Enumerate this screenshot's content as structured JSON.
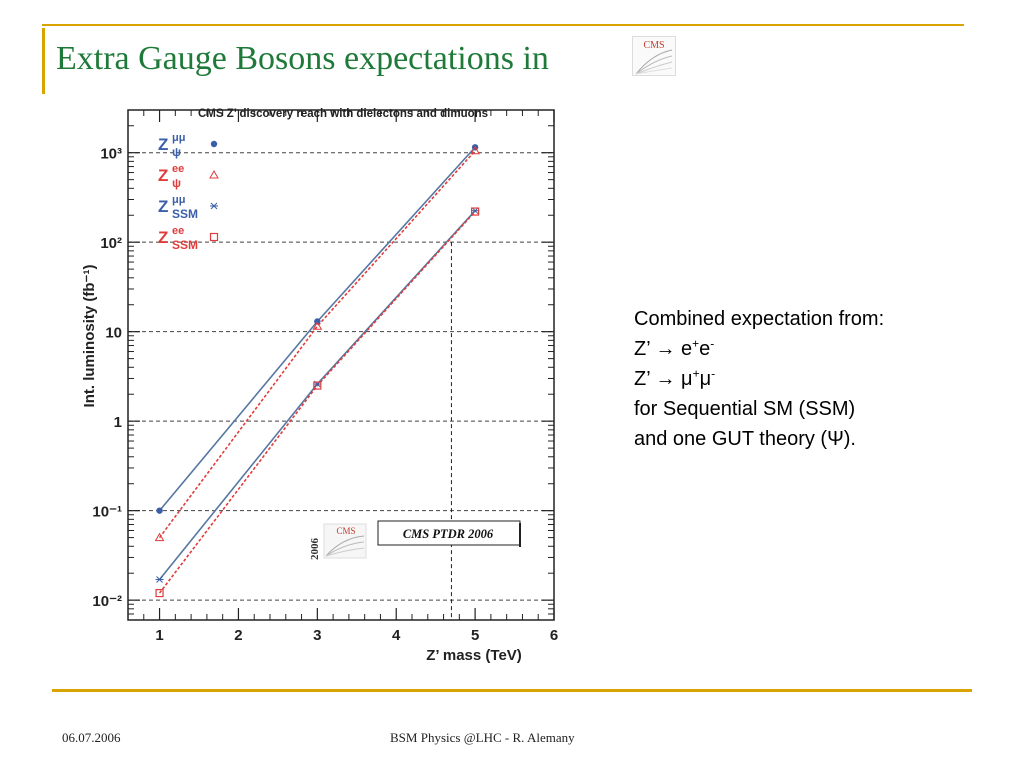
{
  "slide": {
    "title": "Extra Gauge Bosons expectations in",
    "footer_date": "06.07.2006",
    "footer_center": "BSM Physics @LHC -  R. Alemany"
  },
  "logo": {
    "text": "CMS",
    "year": "2006"
  },
  "side_text": {
    "line1": "Combined expectation from:",
    "line2_pre": "Z’ → e",
    "line2_sup1": "+",
    "line2_mid": "e",
    "line2_sup2": "-",
    "line3_pre": "Z’ → μ",
    "line3_sup1": "+",
    "line3_mid": "μ",
    "line3_sup2": "-",
    "line4": "for Sequential SM (SSM)",
    "line5": "and one GUT theory (Ψ)."
  },
  "chart_data": {
    "type": "line",
    "title": "CMS Z’ discovery reach with dielectons and dimuons",
    "xlabel": "Z’ mass (TeV)",
    "ylabel": "Int. luminosity (fb⁻¹)",
    "xlim": [
      0.6,
      6
    ],
    "ylim": [
      0.006,
      3000
    ],
    "yscale": "log",
    "xticks": [
      1,
      2,
      3,
      4,
      5,
      6
    ],
    "xtick_labels": [
      "1",
      "2",
      "3",
      "4",
      "5",
      "6"
    ],
    "yticks": [
      0.01,
      0.1,
      1,
      10,
      100,
      1000
    ],
    "ytick_labels": [
      "10⁻²",
      "10⁻¹",
      "1",
      "10",
      "10²",
      "10³"
    ],
    "grid": "horizontal dashed at decades",
    "legend_position": "top-left",
    "annotation": "CMS PTDR 2006",
    "marker_line": {
      "x": 4.7,
      "y": 100
    },
    "series": [
      {
        "name": "Z_ψ^μμ",
        "label_base": "Z",
        "label_sub": "ψ",
        "label_sup": "μμ",
        "color": "#3b5ea8",
        "line_color": "#5577a0",
        "marker": "dot",
        "dashed": false,
        "x": [
          1,
          3,
          5
        ],
        "y": [
          0.1,
          13,
          1150
        ]
      },
      {
        "name": "Z_ψ^ee",
        "label_base": "Z",
        "label_sub": "ψ",
        "label_sup": "ee",
        "color": "#e03c3c",
        "line_color": "#e03c3c",
        "marker": "triangle",
        "dashed": true,
        "x": [
          1,
          3,
          5
        ],
        "y": [
          0.05,
          11.5,
          1050
        ]
      },
      {
        "name": "Z_SSM^μμ",
        "label_base": "Z",
        "label_sub": "SSM",
        "label_sup": "μμ",
        "color": "#3b5ea8",
        "line_color": "#5577a0",
        "marker": "star",
        "dashed": false,
        "x": [
          1,
          3,
          5
        ],
        "y": [
          0.017,
          2.6,
          225
        ]
      },
      {
        "name": "Z_SSM^ee",
        "label_base": "Z",
        "label_sub": "SSM",
        "label_sup": "ee",
        "color": "#e03c3c",
        "line_color": "#e03c3c",
        "marker": "square",
        "dashed": true,
        "x": [
          1,
          3,
          5
        ],
        "y": [
          0.012,
          2.5,
          220
        ]
      }
    ]
  }
}
